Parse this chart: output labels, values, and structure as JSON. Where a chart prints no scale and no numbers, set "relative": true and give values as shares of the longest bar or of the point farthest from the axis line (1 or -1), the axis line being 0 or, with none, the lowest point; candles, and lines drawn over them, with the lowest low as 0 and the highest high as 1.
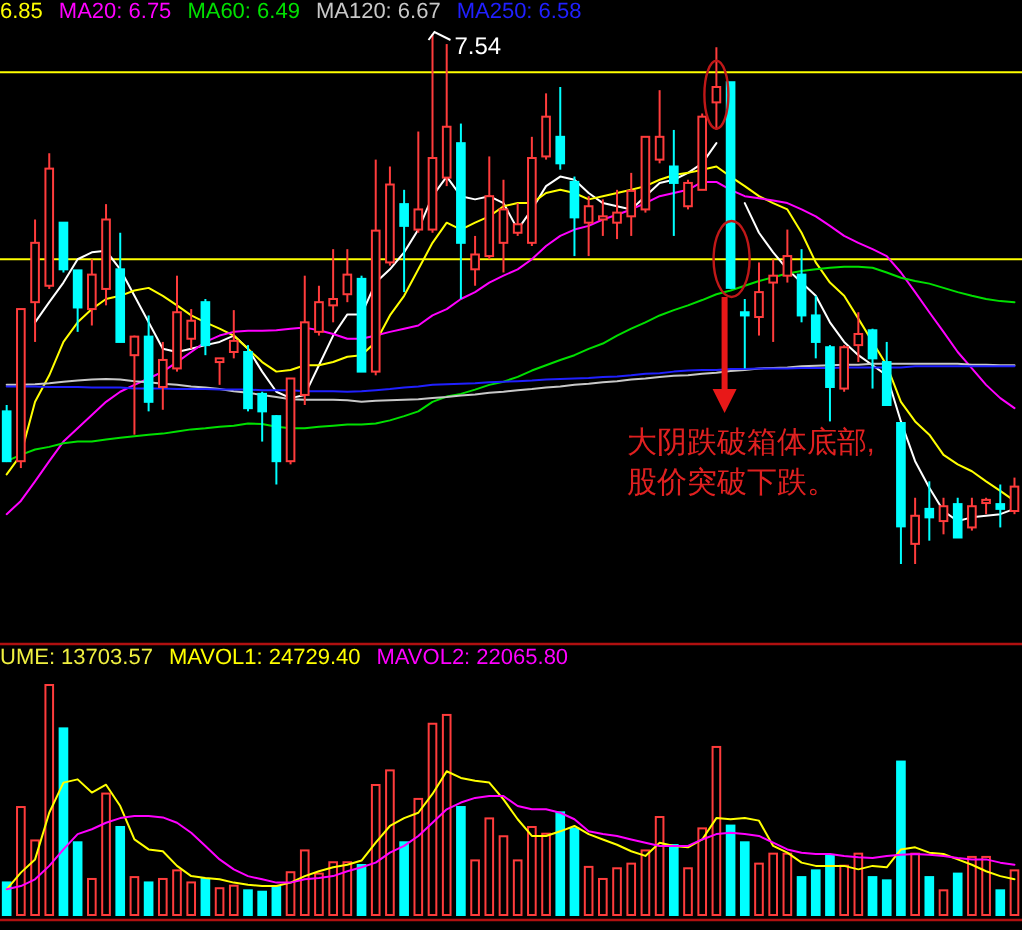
{
  "chart_data": [
    {
      "type": "candlestick",
      "relative": true,
      "legend": "top left",
      "categories": [
        null,
        null,
        null,
        null,
        null,
        null,
        null,
        null,
        null,
        null,
        null,
        null,
        null,
        null,
        null,
        null,
        null,
        null,
        null,
        null,
        null,
        null,
        null,
        null,
        null,
        null,
        null,
        null,
        null,
        null,
        null,
        null,
        null,
        null,
        null,
        null,
        null,
        null,
        null,
        null,
        null,
        null,
        null,
        null,
        null,
        null,
        null,
        null,
        null,
        null,
        null,
        null,
        null,
        null,
        null,
        null,
        null,
        null,
        null,
        null,
        null,
        null,
        null,
        null,
        null,
        null,
        null,
        null,
        null,
        null,
        null,
        null
      ],
      "ohlc": [
        [
          0.288,
          0.3,
          0.194,
          0.194
        ],
        [
          0.194,
          0.481,
          0.181,
          0.481
        ],
        [
          0.494,
          0.65,
          0.419,
          0.606
        ],
        [
          0.525,
          0.775,
          0.519,
          0.746
        ],
        [
          0.644,
          0.644,
          0.55,
          0.556
        ],
        [
          0.554,
          0.554,
          0.438,
          0.484
        ],
        [
          0.481,
          0.575,
          0.45,
          0.546
        ],
        [
          0.519,
          0.679,
          0.488,
          0.65
        ],
        [
          0.556,
          0.625,
          0.419,
          0.419
        ],
        [
          0.394,
          0.431,
          0.244,
          0.429
        ],
        [
          0.429,
          0.469,
          0.288,
          0.306
        ],
        [
          0.334,
          0.419,
          0.291,
          0.385
        ],
        [
          0.369,
          0.544,
          0.363,
          0.475
        ],
        [
          0.425,
          0.481,
          0.406,
          0.459
        ],
        [
          0.494,
          0.5,
          0.394,
          0.413
        ],
        [
          0.381,
          0.388,
          0.338,
          0.388
        ],
        [
          0.4,
          0.479,
          0.388,
          0.421
        ],
        [
          0.4,
          0.413,
          0.288,
          0.294
        ],
        [
          0.321,
          0.325,
          0.231,
          0.288
        ],
        [
          0.279,
          0.281,
          0.15,
          0.194
        ],
        [
          0.194,
          0.35,
          0.188,
          0.35
        ],
        [
          0.319,
          0.544,
          0.3,
          0.456
        ],
        [
          0.438,
          0.525,
          0.431,
          0.494
        ],
        [
          0.488,
          0.594,
          0.456,
          0.5
        ],
        [
          0.509,
          0.594,
          0.494,
          0.546
        ],
        [
          0.538,
          0.544,
          0.363,
          0.363
        ],
        [
          0.363,
          0.763,
          0.356,
          0.629
        ],
        [
          0.569,
          0.75,
          0.563,
          0.716
        ],
        [
          0.679,
          0.706,
          0.513,
          0.638
        ],
        [
          0.631,
          0.816,
          0.625,
          0.669
        ],
        [
          0.631,
          1.0,
          0.625,
          0.766
        ],
        [
          0.729,
          0.981,
          0.713,
          0.825
        ],
        [
          0.794,
          0.831,
          0.5,
          0.606
        ],
        [
          0.556,
          0.619,
          0.525,
          0.584
        ],
        [
          0.581,
          0.769,
          0.575,
          0.694
        ],
        [
          0.606,
          0.725,
          0.55,
          0.669
        ],
        [
          0.625,
          0.681,
          0.619,
          0.641
        ],
        [
          0.606,
          0.806,
          0.6,
          0.766
        ],
        [
          0.769,
          0.888,
          0.763,
          0.844
        ],
        [
          0.806,
          0.9,
          0.744,
          0.756
        ],
        [
          0.721,
          0.731,
          0.581,
          0.654
        ],
        [
          0.644,
          0.694,
          0.581,
          0.675
        ],
        [
          0.65,
          0.688,
          0.619,
          0.656
        ],
        [
          0.644,
          0.706,
          0.613,
          0.663
        ],
        [
          0.656,
          0.738,
          0.619,
          0.704
        ],
        [
          0.669,
          0.806,
          0.663,
          0.806
        ],
        [
          0.763,
          0.894,
          0.756,
          0.806
        ],
        [
          0.75,
          0.819,
          0.619,
          0.719
        ],
        [
          0.675,
          0.725,
          0.669,
          0.719
        ],
        [
          0.706,
          0.85,
          0.706,
          0.844
        ],
        [
          0.871,
          0.975,
          0.819,
          0.9
        ],
        [
          0.909,
          0.909,
          0.519,
          0.521
        ],
        [
          0.475,
          0.5,
          0.369,
          0.469
        ],
        [
          0.466,
          0.569,
          0.431,
          0.513
        ],
        [
          0.531,
          0.575,
          0.419,
          0.544
        ],
        [
          0.544,
          0.631,
          0.531,
          0.581
        ],
        [
          0.546,
          0.594,
          0.456,
          0.469
        ],
        [
          0.469,
          0.506,
          0.388,
          0.419
        ],
        [
          0.409,
          0.413,
          0.269,
          0.334
        ],
        [
          0.331,
          0.413,
          0.325,
          0.409
        ],
        [
          0.413,
          0.475,
          0.381,
          0.434
        ],
        [
          0.441,
          0.444,
          0.331,
          0.388
        ],
        [
          0.381,
          0.419,
          0.3,
          0.3
        ],
        [
          0.266,
          0.266,
          0.0,
          0.071
        ],
        [
          0.038,
          0.125,
          0.0,
          0.091
        ],
        [
          0.104,
          0.156,
          0.044,
          0.088
        ],
        [
          0.081,
          0.125,
          0.056,
          0.109
        ],
        [
          0.113,
          0.125,
          0.05,
          0.05
        ],
        [
          0.069,
          0.125,
          0.063,
          0.109
        ],
        [
          0.115,
          0.125,
          0.094,
          0.121
        ],
        [
          0.113,
          0.15,
          0.069,
          0.104
        ],
        [
          0.1,
          0.163,
          0.094,
          0.146
        ]
      ],
      "colors": [
        "#00ffff",
        "#ff3c3c",
        "#ff3c3c",
        "#ff3c3c",
        "#00ffff",
        "#00ffff",
        "#ff3c3c",
        "#ff3c3c",
        "#00ffff",
        "#ff3c3c",
        "#00ffff",
        "#ff3c3c",
        "#ff3c3c",
        "#ff3c3c",
        "#00ffff",
        "#ff3c3c",
        "#ff3c3c",
        "#00ffff",
        "#00ffff",
        "#00ffff",
        "#ff3c3c",
        "#ff3c3c",
        "#ff3c3c",
        "#ff3c3c",
        "#ff3c3c",
        "#00ffff",
        "#ff3c3c",
        "#ff3c3c",
        "#00ffff",
        "#ff3c3c",
        "#ff3c3c",
        "#ff3c3c",
        "#00ffff",
        "#ff3c3c",
        "#ff3c3c",
        "#ff3c3c",
        "#ff3c3c",
        "#ff3c3c",
        "#ff3c3c",
        "#00ffff",
        "#00ffff",
        "#ff3c3c",
        "#ff3c3c",
        "#ff3c3c",
        "#ff3c3c",
        "#ff3c3c",
        "#ff3c3c",
        "#00ffff",
        "#ff3c3c",
        "#ff3c3c",
        "#ff3c3c",
        "#00ffff",
        "#00ffff",
        "#ff3c3c",
        "#ff3c3c",
        "#ff3c3c",
        "#00ffff",
        "#00ffff",
        "#00ffff",
        "#ff3c3c",
        "#ff3c3c",
        "#00ffff",
        "#00ffff",
        "#00ffff",
        "#ff3c3c",
        "#00ffff",
        "#ff3c3c",
        "#00ffff",
        "#ff3c3c",
        "#ff3c3c",
        "#00ffff",
        "#ff3c3c"
      ],
      "series": [
        {
          "type": "line",
          "color": "#ffffff",
          "values": [
            null,
            null,
            0.456,
            0.494,
            0.531,
            0.575,
            0.588,
            0.591,
            0.556,
            0.506,
            0.456,
            0.406,
            0.4,
            0.406,
            0.413,
            0.419,
            0.431,
            0.406,
            0.363,
            0.325,
            0.313,
            0.319,
            0.375,
            0.431,
            0.471,
            0.471,
            0.531,
            0.556,
            0.588,
            0.631,
            0.694,
            0.731,
            0.694,
            0.688,
            0.694,
            0.681,
            0.631,
            0.669,
            0.713,
            0.731,
            0.725,
            0.7,
            0.681,
            0.675,
            0.669,
            0.694,
            0.719,
            0.725,
            0.738,
            0.756,
            0.794,
            null,
            0.681,
            0.625,
            0.588,
            0.556,
            0.531,
            0.506,
            0.456,
            0.419,
            0.394,
            0.375,
            0.356,
            0.269,
            0.194,
            0.144,
            0.1,
            0.081,
            0.088,
            0.091,
            0.094,
            0.104
          ]
        },
        {
          "type": "line",
          "name": "6.85",
          "color": "#ffff00",
          "values": [
            0.169,
            0.206,
            0.306,
            0.356,
            0.419,
            0.456,
            0.481,
            0.5,
            0.506,
            0.516,
            0.521,
            0.506,
            0.488,
            0.469,
            0.456,
            0.444,
            0.431,
            0.406,
            0.381,
            0.363,
            0.366,
            0.375,
            0.375,
            0.381,
            0.391,
            0.394,
            0.419,
            0.469,
            0.506,
            0.556,
            0.606,
            0.644,
            0.631,
            0.644,
            0.656,
            0.675,
            0.681,
            0.681,
            0.7,
            0.706,
            0.7,
            0.688,
            0.694,
            0.7,
            0.706,
            0.713,
            0.725,
            0.734,
            0.738,
            0.744,
            0.75,
            0.731,
            0.713,
            0.694,
            0.681,
            0.669,
            0.625,
            0.569,
            0.531,
            0.506,
            0.463,
            0.419,
            0.375,
            0.306,
            0.269,
            0.244,
            0.206,
            0.188,
            0.175,
            0.156,
            0.138,
            0.119
          ]
        },
        {
          "type": "line",
          "name": "MA20: 6.75",
          "color": "#ff00ff",
          "values": [
            0.094,
            0.119,
            0.156,
            0.194,
            0.231,
            0.256,
            0.281,
            0.306,
            0.325,
            0.338,
            0.35,
            0.363,
            0.381,
            0.4,
            0.419,
            0.431,
            0.438,
            0.44,
            0.44,
            0.441,
            0.444,
            0.446,
            0.441,
            0.434,
            0.425,
            0.425,
            0.431,
            0.438,
            0.444,
            0.45,
            0.469,
            0.481,
            0.5,
            0.513,
            0.531,
            0.544,
            0.556,
            0.575,
            0.6,
            0.619,
            0.631,
            0.638,
            0.65,
            0.659,
            0.669,
            0.681,
            0.694,
            0.7,
            0.706,
            0.721,
            0.721,
            0.706,
            0.694,
            0.69,
            0.686,
            0.681,
            0.669,
            0.656,
            0.638,
            0.619,
            0.606,
            0.594,
            0.581,
            0.55,
            0.513,
            0.475,
            0.438,
            0.4,
            0.369,
            0.338,
            0.313,
            0.294
          ]
        },
        {
          "type": "line",
          "name": "MA60: 6.49",
          "color": "#00e000",
          "values": [
            0.194,
            0.206,
            0.216,
            0.221,
            0.228,
            0.231,
            0.231,
            0.235,
            0.238,
            0.241,
            0.244,
            0.246,
            0.25,
            0.254,
            0.256,
            0.259,
            0.261,
            0.265,
            0.264,
            0.259,
            0.256,
            0.256,
            0.259,
            0.261,
            0.263,
            0.263,
            0.265,
            0.271,
            0.279,
            0.288,
            0.306,
            0.316,
            0.321,
            0.329,
            0.338,
            0.344,
            0.353,
            0.365,
            0.375,
            0.385,
            0.394,
            0.406,
            0.416,
            0.431,
            0.444,
            0.456,
            0.469,
            0.479,
            0.488,
            0.498,
            0.509,
            0.516,
            0.525,
            0.534,
            0.541,
            0.548,
            0.553,
            0.556,
            0.559,
            0.561,
            0.561,
            0.559,
            0.55,
            0.54,
            0.534,
            0.529,
            0.521,
            0.513,
            0.506,
            0.5,
            0.496,
            0.494
          ]
        },
        {
          "type": "line",
          "name": "MA120: 6.67",
          "color": "#c8c8c8",
          "values": [
            0.338,
            0.338,
            0.339,
            0.341,
            0.344,
            0.346,
            0.348,
            0.349,
            0.348,
            0.345,
            0.343,
            0.34,
            0.338,
            0.335,
            0.333,
            0.33,
            0.326,
            0.323,
            0.319,
            0.315,
            0.311,
            0.31,
            0.31,
            0.31,
            0.309,
            0.306,
            0.308,
            0.309,
            0.31,
            0.311,
            0.313,
            0.315,
            0.318,
            0.32,
            0.323,
            0.325,
            0.328,
            0.33,
            0.333,
            0.335,
            0.338,
            0.34,
            0.343,
            0.345,
            0.348,
            0.35,
            0.353,
            0.355,
            0.356,
            0.359,
            0.361,
            0.364,
            0.366,
            0.369,
            0.37,
            0.371,
            0.373,
            0.374,
            0.375,
            0.376,
            0.376,
            0.378,
            0.378,
            0.378,
            0.378,
            0.378,
            0.378,
            0.378,
            0.376,
            0.376,
            0.375,
            0.375
          ]
        },
        {
          "type": "line",
          "name": "MA250: 6.58",
          "color": "#2020ff",
          "values": [
            0.335,
            0.335,
            0.335,
            0.334,
            0.334,
            0.334,
            0.333,
            0.333,
            0.333,
            0.331,
            0.331,
            0.331,
            0.33,
            0.33,
            0.33,
            0.329,
            0.329,
            0.329,
            0.328,
            0.328,
            0.328,
            0.326,
            0.326,
            0.326,
            0.325,
            0.326,
            0.328,
            0.33,
            0.333,
            0.335,
            0.338,
            0.339,
            0.34,
            0.341,
            0.343,
            0.344,
            0.345,
            0.346,
            0.348,
            0.349,
            0.35,
            0.351,
            0.353,
            0.354,
            0.356,
            0.359,
            0.36,
            0.363,
            0.365,
            0.366,
            0.366,
            0.368,
            0.368,
            0.369,
            0.369,
            0.369,
            0.37,
            0.37,
            0.37,
            0.371,
            0.371,
            0.371,
            0.371,
            0.371,
            0.373,
            0.373,
            0.373,
            0.373,
            0.373,
            0.373,
            0.373,
            0.373
          ]
        }
      ],
      "ref_lines": [
        {
          "axis": "y",
          "value": 0.928,
          "color": "#ffff00"
        },
        {
          "axis": "y",
          "value": 0.575,
          "color": "#ffff00"
        }
      ],
      "annotations": [
        "7.54",
        "大阴跌破箱体底部,\n股价突破下跌。"
      ]
    },
    {
      "type": "bar",
      "relative": true,
      "legend": "top left",
      "categories": [
        null,
        null,
        null,
        null,
        null,
        null,
        null,
        null,
        null,
        null,
        null,
        null,
        null,
        null,
        null,
        null,
        null,
        null,
        null,
        null,
        null,
        null,
        null,
        null,
        null,
        null,
        null,
        null,
        null,
        null,
        null,
        null,
        null,
        null,
        null,
        null,
        null,
        null,
        null,
        null,
        null,
        null,
        null,
        null,
        null,
        null,
        null,
        null,
        null,
        null,
        null,
        null,
        null,
        null,
        null,
        null,
        null,
        null,
        null,
        null,
        null,
        null,
        null,
        null,
        null,
        null,
        null,
        null,
        null,
        null,
        null,
        null
      ],
      "series": [
        {
          "type": "bar",
          "name": "UME: 13703.57",
          "colors": [
            "#00ffff",
            "#ff3c3c",
            "#ff3c3c",
            "#ff3c3c",
            "#00ffff",
            "#00ffff",
            "#ff3c3c",
            "#ff3c3c",
            "#00ffff",
            "#ff3c3c",
            "#00ffff",
            "#ff3c3c",
            "#ff3c3c",
            "#ff3c3c",
            "#00ffff",
            "#ff3c3c",
            "#ff3c3c",
            "#00ffff",
            "#00ffff",
            "#00ffff",
            "#ff3c3c",
            "#ff3c3c",
            "#ff3c3c",
            "#ff3c3c",
            "#ff3c3c",
            "#00ffff",
            "#ff3c3c",
            "#ff3c3c",
            "#00ffff",
            "#ff3c3c",
            "#ff3c3c",
            "#ff3c3c",
            "#00ffff",
            "#ff3c3c",
            "#ff3c3c",
            "#ff3c3c",
            "#ff3c3c",
            "#ff3c3c",
            "#ff3c3c",
            "#00ffff",
            "#00ffff",
            "#ff3c3c",
            "#ff3c3c",
            "#ff3c3c",
            "#ff3c3c",
            "#ff3c3c",
            "#ff3c3c",
            "#00ffff",
            "#ff3c3c",
            "#ff3c3c",
            "#ff3c3c",
            "#00ffff",
            "#00ffff",
            "#ff3c3c",
            "#ff3c3c",
            "#ff3c3c",
            "#00ffff",
            "#00ffff",
            "#00ffff",
            "#ff3c3c",
            "#ff3c3c",
            "#00ffff",
            "#00ffff",
            "#00ffff",
            "#ff3c3c",
            "#00ffff",
            "#ff3c3c",
            "#00ffff",
            "#ff3c3c",
            "#ff3c3c",
            "#00ffff",
            "#ff3c3c"
          ],
          "values": [
            0.149,
            0.474,
            0.33,
            1.0,
            0.813,
            0.322,
            0.164,
            0.532,
            0.388,
            0.172,
            0.149,
            0.164,
            0.201,
            0.149,
            0.164,
            0.124,
            0.135,
            0.115,
            0.109,
            0.129,
            0.193,
            0.287,
            0.187,
            0.236,
            0.236,
            0.224,
            0.569,
            0.632,
            0.322,
            0.509,
            0.833,
            0.871,
            0.474,
            0.244,
            0.425,
            0.348,
            0.244,
            0.388,
            0.359,
            0.451,
            0.382,
            0.216,
            0.164,
            0.21,
            0.23,
            0.287,
            0.431,
            0.31,
            0.21,
            0.382,
            0.733,
            0.394,
            0.322,
            0.23,
            0.273,
            0.273,
            0.172,
            0.201,
            0.264,
            0.221,
            0.273,
            0.172,
            0.158,
            0.67,
            0.273,
            0.172,
            0.115,
            0.187,
            0.259,
            0.259,
            0.115,
            0.201
          ]
        },
        {
          "type": "line",
          "name": "MAVOL1: 24729.40",
          "color": "#ffff00",
          "values": [
            0.115,
            0.187,
            0.244,
            0.445,
            0.575,
            0.589,
            0.532,
            0.566,
            0.474,
            0.33,
            0.287,
            0.279,
            0.216,
            0.172,
            0.164,
            0.158,
            0.144,
            0.135,
            0.129,
            0.129,
            0.144,
            0.172,
            0.193,
            0.21,
            0.221,
            0.239,
            0.316,
            0.388,
            0.422,
            0.445,
            0.526,
            0.624,
            0.595,
            0.583,
            0.575,
            0.503,
            0.417,
            0.345,
            0.345,
            0.365,
            0.388,
            0.353,
            0.33,
            0.307,
            0.279,
            0.259,
            0.316,
            0.302,
            0.296,
            0.33,
            0.422,
            0.417,
            0.422,
            0.411,
            0.302,
            0.273,
            0.23,
            0.216,
            0.216,
            0.216,
            0.201,
            0.216,
            0.21,
            0.287,
            0.296,
            0.273,
            0.267,
            0.244,
            0.221,
            0.193,
            0.172,
            0.158
          ]
        },
        {
          "type": "line",
          "name": "MAVOL2: 22065.80",
          "color": "#ff00ff",
          "values": [
            0.115,
            0.129,
            0.158,
            0.216,
            0.287,
            0.353,
            0.374,
            0.402,
            0.422,
            0.431,
            0.431,
            0.425,
            0.402,
            0.359,
            0.302,
            0.244,
            0.201,
            0.172,
            0.158,
            0.144,
            0.144,
            0.158,
            0.164,
            0.172,
            0.193,
            0.21,
            0.23,
            0.273,
            0.302,
            0.345,
            0.402,
            0.46,
            0.489,
            0.509,
            0.517,
            0.517,
            0.474,
            0.46,
            0.46,
            0.445,
            0.417,
            0.365,
            0.353,
            0.345,
            0.33,
            0.316,
            0.302,
            0.302,
            0.302,
            0.33,
            0.353,
            0.359,
            0.353,
            0.345,
            0.316,
            0.287,
            0.273,
            0.267,
            0.267,
            0.259,
            0.253,
            0.25,
            0.259,
            0.264,
            0.267,
            0.264,
            0.259,
            0.25,
            0.244,
            0.244,
            0.23,
            0.221
          ]
        }
      ]
    }
  ]
}
